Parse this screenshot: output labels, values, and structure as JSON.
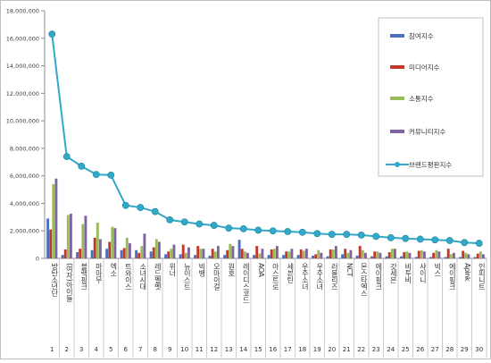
{
  "chart_data": {
    "type": "bar",
    "title": "",
    "xlabel": "",
    "ylabel": "",
    "ylim": [
      0,
      18000000
    ],
    "y_ticks": [
      0,
      2000000,
      4000000,
      6000000,
      8000000,
      10000000,
      12000000,
      14000000,
      16000000,
      18000000
    ],
    "y_tick_labels": [
      "0",
      "2,000,000",
      "4,000,000",
      "6,000,000",
      "8,000,000",
      "10,000,000",
      "12,000,000",
      "14,000,000",
      "16,000,000",
      "18,000,000"
    ],
    "grid": false,
    "legend_position": "top-right",
    "categories": [
      "방탄소년단",
      "(여자)아이들",
      "블랙핑크",
      "마마무",
      "엑소",
      "트와이스",
      "소녀시대",
      "레드벨벳",
      "위너",
      "뉴이스트",
      "빅뱅",
      "오마이걸",
      "원호",
      "레이디스코드",
      "AOA",
      "아스트로",
      "세븐틴",
      "우주소녀",
      "우주소녀",
      "러블리즈",
      "NCT",
      "몬스타엑스",
      "에이핑크",
      "갓세븐",
      "비투비",
      "샤이니",
      "빅스",
      "에이핑크",
      "Apink",
      "인피니트"
    ],
    "category_numbers": [
      "1",
      "2",
      "3",
      "4",
      "5",
      "6",
      "7",
      "8",
      "9",
      "10",
      "11",
      "12",
      "13",
      "14",
      "15",
      "16",
      "17",
      "18",
      "19",
      "20",
      "21",
      "22",
      "23",
      "24",
      "25",
      "26",
      "27",
      "28",
      "29",
      "30"
    ],
    "series": [
      {
        "name": "참여지수",
        "kind": "bar",
        "color": "#4a6fbf",
        "values": [
          2900000,
          250000,
          450000,
          600000,
          700000,
          600000,
          600000,
          500000,
          300000,
          300000,
          250000,
          200000,
          250000,
          1350000,
          250000,
          250000,
          250000,
          250000,
          200000,
          150000,
          300000,
          200000,
          150000,
          150000,
          150000,
          100000,
          100000,
          100000,
          100000,
          100000
        ]
      },
      {
        "name": "미디어지수",
        "kind": "bar",
        "color": "#c0392b",
        "values": [
          2100000,
          650000,
          700000,
          1500000,
          1200000,
          750000,
          400000,
          800000,
          500000,
          1000000,
          900000,
          700000,
          600000,
          700000,
          900000,
          650000,
          500000,
          650000,
          300000,
          650000,
          700000,
          900000,
          500000,
          450000,
          450000,
          550000,
          400000,
          700000,
          550000,
          350000
        ]
      },
      {
        "name": "소통지수",
        "kind": "bar",
        "color": "#9bbb59",
        "values": [
          5400000,
          3150000,
          2500000,
          2600000,
          2300000,
          1500000,
          900000,
          1400000,
          700000,
          400000,
          700000,
          500000,
          1050000,
          500000,
          350000,
          700000,
          500000,
          550000,
          600000,
          650000,
          400000,
          600000,
          500000,
          700000,
          500000,
          600000,
          600000,
          300000,
          400000,
          500000
        ]
      },
      {
        "name": "커뮤니티지수",
        "kind": "bar",
        "color": "#8064a2",
        "values": [
          5800000,
          3250000,
          3100000,
          1400000,
          2200000,
          1100000,
          1800000,
          1200000,
          1000000,
          800000,
          700000,
          900000,
          900000,
          400000,
          700000,
          900000,
          700000,
          700000,
          400000,
          900000,
          600000,
          400000,
          400000,
          700000,
          400000,
          500000,
          500000,
          400000,
          300000,
          300000
        ]
      },
      {
        "name": "브랜드평판지수",
        "kind": "line",
        "color": "#31a9c8",
        "values": [
          16300000,
          7400000,
          6700000,
          6100000,
          6050000,
          3850000,
          3700000,
          3400000,
          2800000,
          2650000,
          2500000,
          2400000,
          2200000,
          2150000,
          2050000,
          2000000,
          1950000,
          1900000,
          1800000,
          1750000,
          1750000,
          1700000,
          1600000,
          1500000,
          1450000,
          1400000,
          1350000,
          1300000,
          1150000,
          1100000
        ]
      }
    ]
  }
}
